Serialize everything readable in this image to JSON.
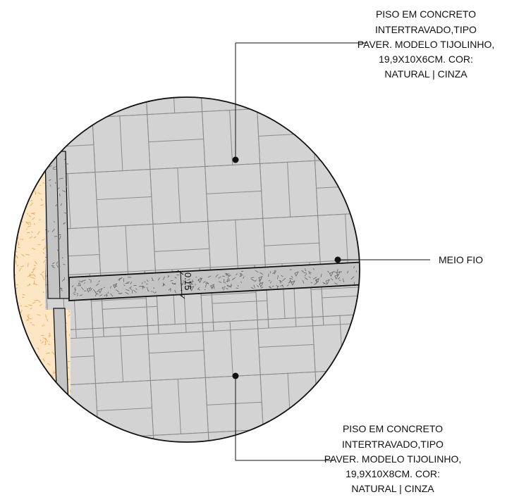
{
  "labels": {
    "top": [
      "PISO EM CONCRETO",
      "INTERTRAVADO,TIPO",
      "PAVER. MODELO TIJOLINHO,",
      "19,9X10X6CM. COR:",
      "NATURAL | CINZA"
    ],
    "bottom": [
      "PISO EM CONCRETO",
      "INTERTRAVADO,TIPO",
      "PAVER. MODELO TIJOLINHO,",
      "19,9X10X8CM. COR:",
      "NATURAL | CINZA"
    ],
    "curb": "MEIO FIO"
  },
  "dimension": "0.15",
  "colors": {
    "paver": "#d3d3d3",
    "joint": "#8c8c8c",
    "concrete": "#c4c4c4",
    "soil": "#fde6c4",
    "line": "#111111"
  }
}
